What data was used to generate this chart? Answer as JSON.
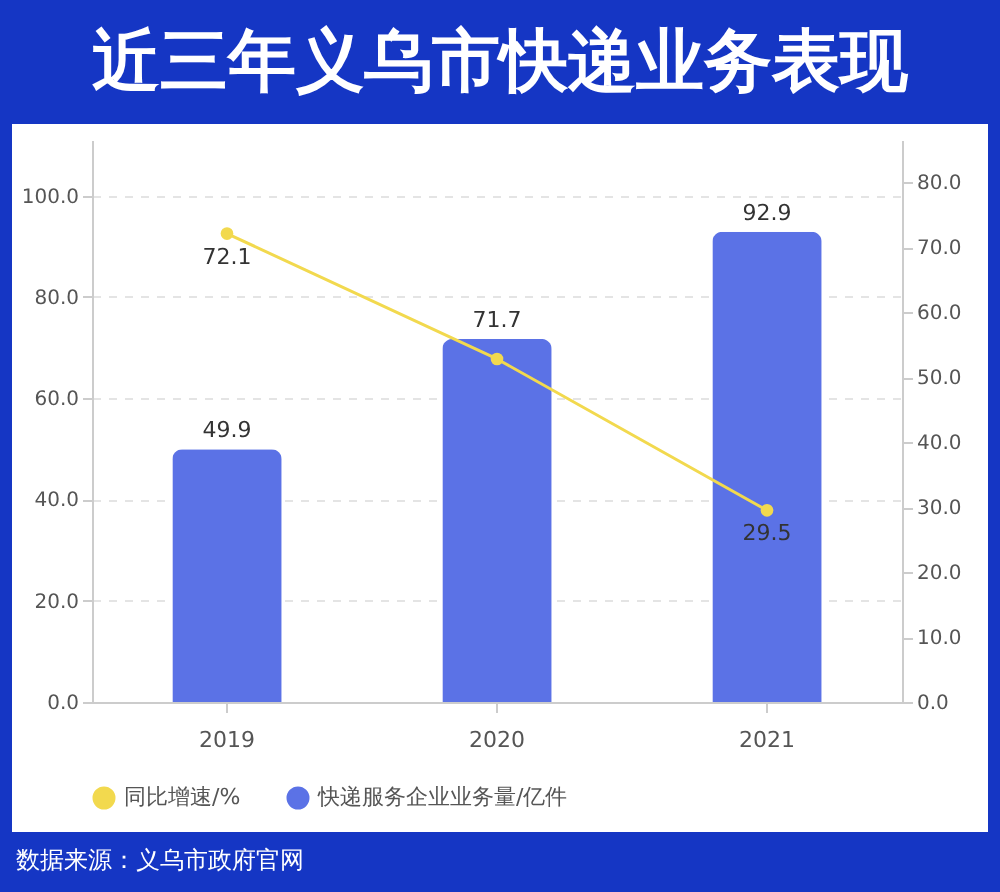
{
  "chart_data": {
    "type": "bar",
    "title": "近三年义乌市快递业务表现",
    "categories": [
      "2019",
      "2020",
      "2021"
    ],
    "series": [
      {
        "name": "同比增速/%",
        "type": "line",
        "axis": "y2",
        "color": "#f2d94e",
        "values": [
          72.1,
          52.8,
          29.5
        ],
        "value_labels": [
          "72.1",
          null,
          "29.5"
        ]
      },
      {
        "name": "快递服务企业业务量/亿件",
        "color": "#5b72e6",
        "values": [
          49.9,
          71.7,
          92.9
        ],
        "value_labels": [
          "49.9",
          "71.7",
          "92.9"
        ]
      }
    ],
    "ylim": [
      0,
      111
    ],
    "yticks": [
      {
        "value": 0,
        "label": "0.0"
      },
      {
        "value": 20,
        "label": "20.0"
      },
      {
        "value": 40,
        "label": "40.0"
      },
      {
        "value": 60,
        "label": "60.0"
      },
      {
        "value": 80,
        "label": "80.0"
      },
      {
        "value": 100,
        "label": "100.0"
      }
    ],
    "y2lim": [
      0,
      86.5
    ],
    "y2ticks": [
      {
        "value": 0,
        "label": "0.0"
      },
      {
        "value": 10,
        "label": "10.0"
      },
      {
        "value": 20,
        "label": "20.0"
      },
      {
        "value": 30,
        "label": "30.0"
      },
      {
        "value": 40,
        "label": "40.0"
      },
      {
        "value": 50,
        "label": "50.0"
      },
      {
        "value": 60,
        "label": "60.0"
      },
      {
        "value": 70,
        "label": "70.0"
      },
      {
        "value": 80,
        "label": "80.0"
      }
    ],
    "grid": "y",
    "legend": "bottom",
    "marker": "circle",
    "annotations": [
      "数据来源：义乌市政府官网"
    ]
  }
}
